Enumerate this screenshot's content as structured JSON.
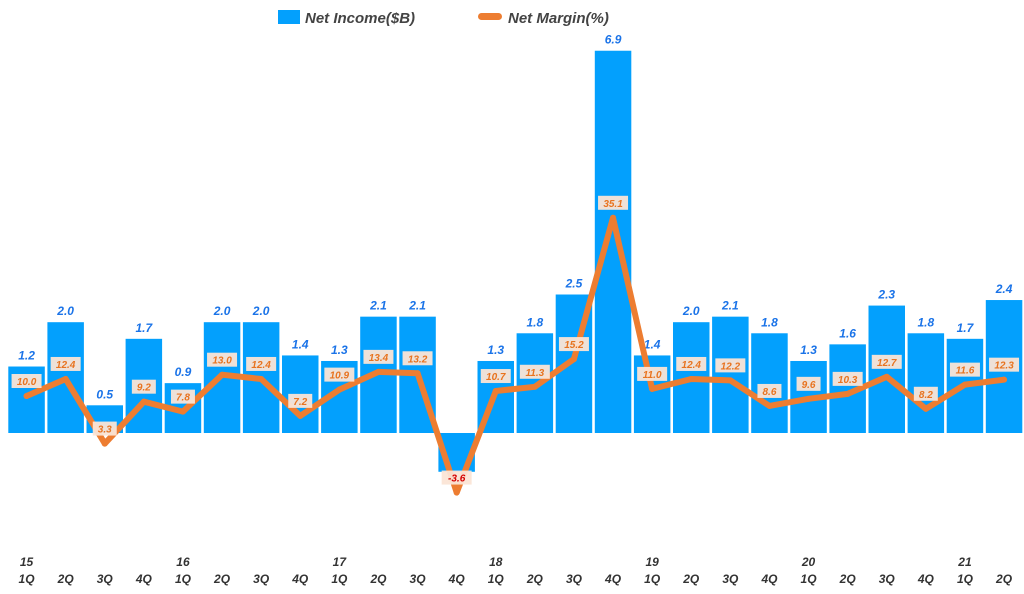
{
  "chart_data": {
    "type": "bar+line",
    "categories": [
      {
        "year": "15",
        "q": "1Q"
      },
      {
        "year": "",
        "q": "2Q"
      },
      {
        "year": "",
        "q": "3Q"
      },
      {
        "year": "",
        "q": "4Q"
      },
      {
        "year": "16",
        "q": "1Q"
      },
      {
        "year": "",
        "q": "2Q"
      },
      {
        "year": "",
        "q": "3Q"
      },
      {
        "year": "",
        "q": "4Q"
      },
      {
        "year": "17",
        "q": "1Q"
      },
      {
        "year": "",
        "q": "2Q"
      },
      {
        "year": "",
        "q": "3Q"
      },
      {
        "year": "",
        "q": "4Q"
      },
      {
        "year": "18",
        "q": "1Q"
      },
      {
        "year": "",
        "q": "2Q"
      },
      {
        "year": "",
        "q": "3Q"
      },
      {
        "year": "",
        "q": "4Q"
      },
      {
        "year": "19",
        "q": "1Q"
      },
      {
        "year": "",
        "q": "2Q"
      },
      {
        "year": "",
        "q": "3Q"
      },
      {
        "year": "",
        "q": "4Q"
      },
      {
        "year": "20",
        "q": "1Q"
      },
      {
        "year": "",
        "q": "2Q"
      },
      {
        "year": "",
        "q": "3Q"
      },
      {
        "year": "",
        "q": "4Q"
      },
      {
        "year": "21",
        "q": "1Q"
      },
      {
        "year": "",
        "q": "2Q"
      }
    ],
    "series": [
      {
        "name": "Net Income($B)",
        "kind": "bar",
        "color": "#03a0fd",
        "values": [
          1.2,
          2.0,
          0.5,
          1.7,
          0.9,
          2.0,
          2.0,
          1.4,
          1.3,
          2.1,
          2.1,
          -0.7,
          1.3,
          1.8,
          2.5,
          6.9,
          1.4,
          2.0,
          2.1,
          1.8,
          1.3,
          1.6,
          2.3,
          1.8,
          1.7,
          2.4
        ],
        "labels": [
          "1.2",
          "2.0",
          "0.5",
          "1.7",
          "0.9",
          "2.0",
          "2.0",
          "1.4",
          "1.3",
          "2.1",
          "2.1",
          "",
          "1.3",
          "1.8",
          "2.5",
          "6.9",
          "1.4",
          "2.0",
          "2.1",
          "1.8",
          "1.3",
          "1.6",
          "2.3",
          "1.8",
          "1.7",
          "2.4"
        ]
      },
      {
        "name": "Net Margin(%)",
        "kind": "line",
        "color": "#ed7d31",
        "values": [
          10.0,
          12.4,
          3.3,
          9.2,
          7.8,
          13.0,
          12.4,
          7.2,
          10.9,
          13.4,
          13.2,
          -3.6,
          10.7,
          11.3,
          15.2,
          35.1,
          11.0,
          12.4,
          12.2,
          8.6,
          9.6,
          10.3,
          12.7,
          8.2,
          11.6,
          12.3
        ],
        "labels": [
          "10.0",
          "12.4",
          "3.3",
          "9.2",
          "7.8",
          "13.0",
          "12.4",
          "7.2",
          "10.9",
          "13.4",
          "13.2",
          "-3.6",
          "10.7",
          "11.3",
          "15.2",
          "35.1",
          "11.0",
          "12.4",
          "12.2",
          "8.6",
          "9.6",
          "10.3",
          "12.7",
          "8.2",
          "11.6",
          "12.3"
        ]
      }
    ],
    "legend": {
      "placement": "top-center",
      "items": [
        "Net Income($B)",
        "Net Margin(%)"
      ]
    },
    "income_axis": {
      "min": -3.0,
      "max": 7.0
    },
    "margin_axis": {
      "min": -6.0,
      "max": 42.0
    },
    "gridlines": false
  }
}
